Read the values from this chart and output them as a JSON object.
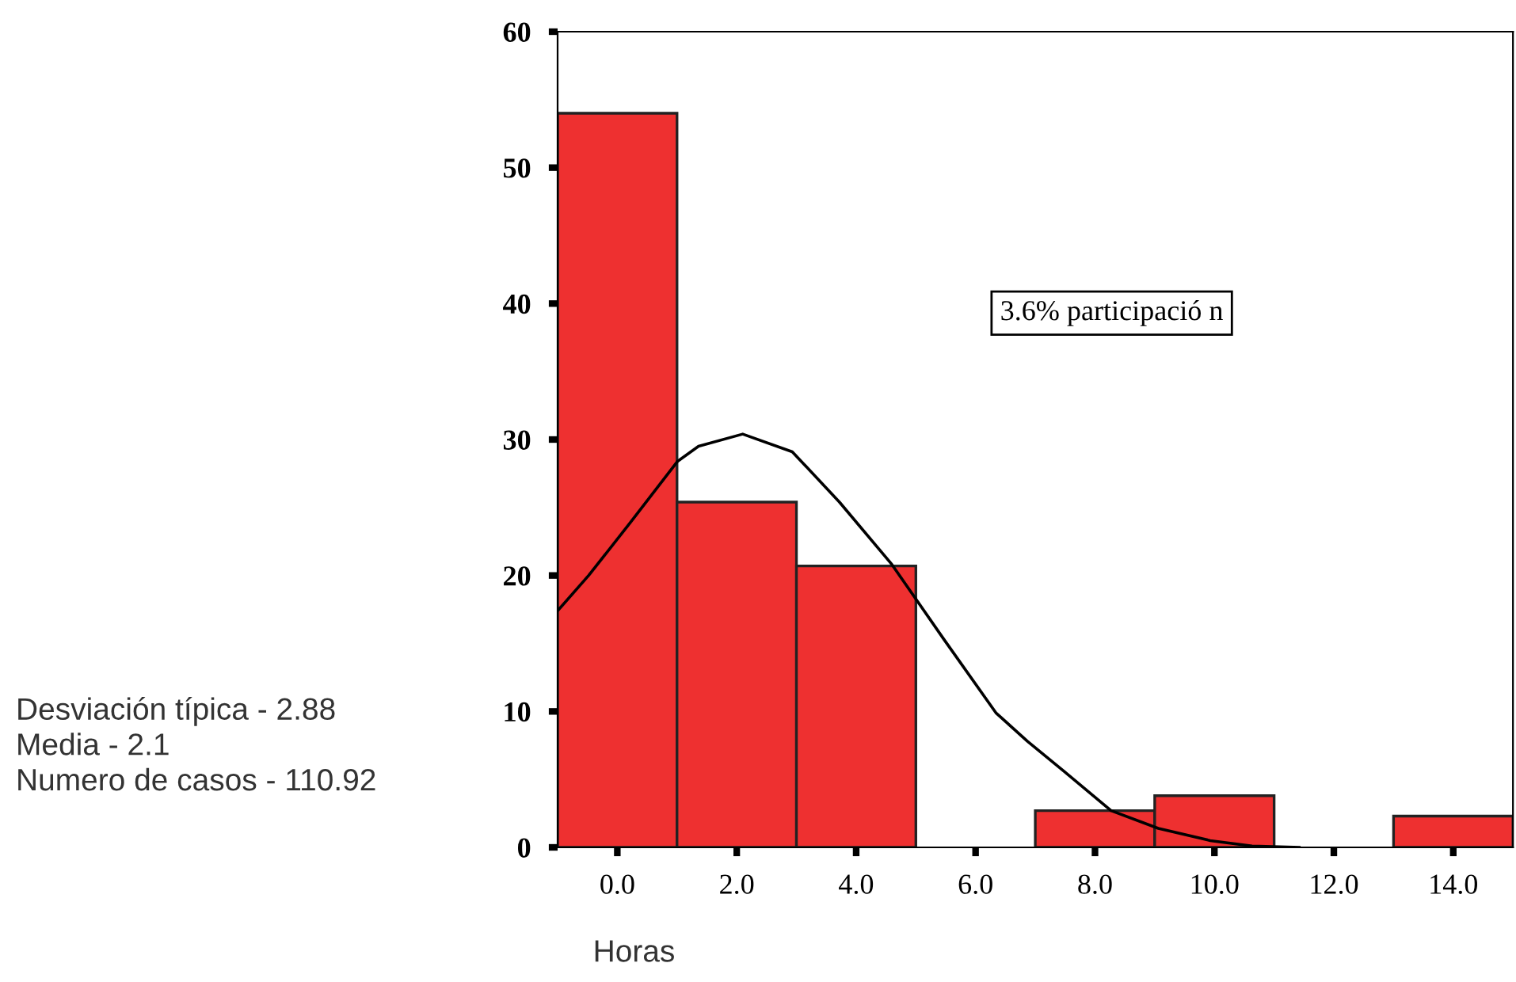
{
  "chart_data": {
    "type": "histogram",
    "xlabel": "Horas",
    "bins": [
      -1,
      1,
      3,
      5,
      7,
      9,
      11,
      13,
      15
    ],
    "values": [
      54,
      25.4,
      20.7,
      0,
      2.7,
      3.8,
      0,
      2.3
    ],
    "color": "#ee3030",
    "series": [
      {
        "type": "line",
        "color": "#000000",
        "x": [
          -1,
          -0.48,
          0.22,
          1.01,
          1.36,
          2.1,
          2.93,
          3.72,
          4.6,
          5.47,
          6.34,
          6.87,
          7.48,
          8.27,
          9.06,
          9.93,
          10.63,
          11.42
        ],
        "values": [
          17.4,
          20.0,
          23.9,
          28.4,
          29.5,
          30.4,
          29.1,
          25.4,
          20.8,
          15.3,
          9.9,
          7.8,
          5.6,
          2.7,
          1.4,
          0.5,
          0.1,
          0
        ]
      }
    ],
    "xlim": [
      -1,
      15
    ],
    "ylim": [
      0,
      60
    ],
    "xticks": [
      {
        "value": 0,
        "label": "0.0"
      },
      {
        "value": 2,
        "label": "2.0"
      },
      {
        "value": 4,
        "label": "4.0"
      },
      {
        "value": 6,
        "label": "6.0"
      },
      {
        "value": 8,
        "label": "8.0"
      },
      {
        "value": 10,
        "label": "10.0"
      },
      {
        "value": 12,
        "label": "12.0"
      },
      {
        "value": 14,
        "label": "14.0"
      }
    ],
    "yticks": [
      0,
      10,
      20,
      30,
      40,
      50,
      60
    ],
    "grid": false,
    "legend": false,
    "annotations": [
      "3.6% participació n",
      "Desviación típica - 2.88\nMedia - 2.1\nNumero de casos - 110.92"
    ]
  }
}
